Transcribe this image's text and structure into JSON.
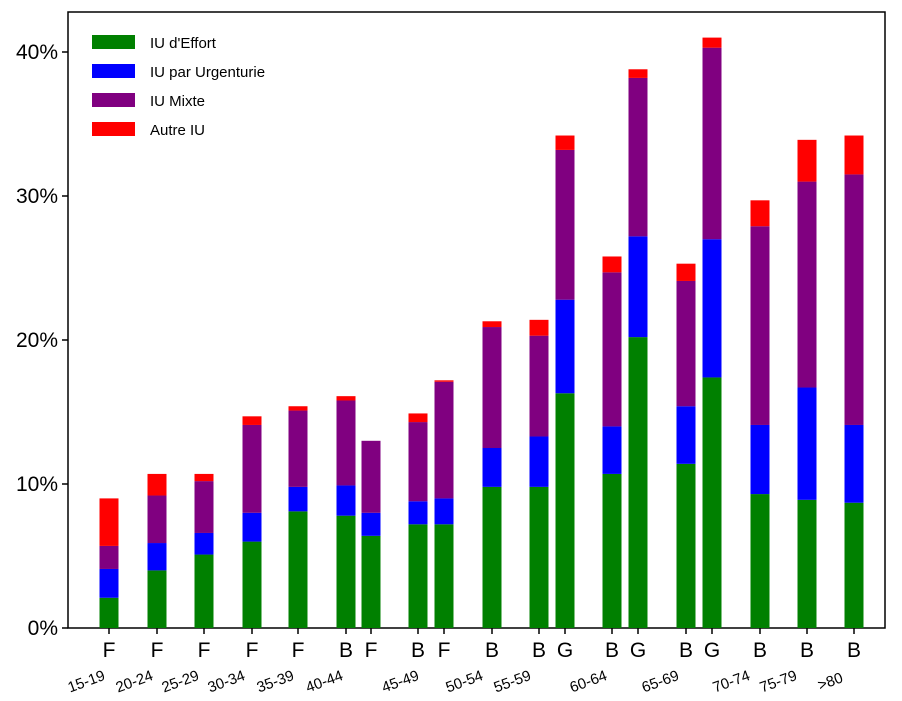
{
  "chart_data": {
    "type": "bar",
    "stacked": true,
    "title": "",
    "xlabel": "",
    "ylabel": "",
    "ylim": [
      0,
      43
    ],
    "yticks": [
      0,
      10,
      20,
      30,
      40
    ],
    "ytick_labels": [
      "0%",
      "10%",
      "20%",
      "30%",
      "40%"
    ],
    "legend_position": "top-left",
    "grid": false,
    "age_groups": [
      "15-19",
      "20-24",
      "25-29",
      "30-34",
      "35-39",
      "40-44",
      "45-49",
      "50-54",
      "55-59",
      "60-64",
      "65-69",
      "70-74",
      "75-79",
      ">80"
    ],
    "categories": [
      "F",
      "F",
      "F",
      "F",
      "F",
      "B",
      "F",
      "B",
      "F",
      "B",
      "B",
      "G",
      "B",
      "G",
      "B",
      "G",
      "B",
      "B",
      "B"
    ],
    "bar_age_groups": [
      "15-19",
      "20-24",
      "25-29",
      "30-34",
      "35-39",
      "40-44",
      "40-44",
      "45-49",
      "45-49",
      "50-54",
      "55-59",
      "55-59",
      "60-64",
      "60-64",
      "65-69",
      "65-69",
      "70-74",
      "75-79",
      ">80"
    ],
    "series": [
      {
        "name": "IU d'Effort",
        "color": "#008000",
        "values": [
          2.1,
          4.0,
          5.1,
          6.0,
          8.1,
          7.8,
          6.4,
          7.2,
          7.2,
          9.8,
          9.8,
          16.3,
          10.7,
          20.2,
          11.4,
          17.4,
          9.3,
          8.9,
          8.7
        ]
      },
      {
        "name": "IU par Urgenturie",
        "color": "#0000ff",
        "values": [
          2.0,
          1.9,
          1.5,
          2.0,
          1.7,
          2.1,
          1.6,
          1.6,
          1.8,
          2.7,
          3.5,
          6.5,
          3.3,
          7.0,
          4.0,
          9.6,
          4.8,
          7.8,
          5.4
        ]
      },
      {
        "name": "IU Mixte",
        "color": "#800080",
        "values": [
          1.6,
          3.3,
          3.6,
          6.1,
          5.3,
          5.9,
          5.0,
          5.5,
          8.1,
          8.4,
          7.0,
          10.4,
          10.7,
          11.0,
          8.7,
          13.3,
          13.8,
          14.3,
          17.4
        ]
      },
      {
        "name": "Autre IU",
        "color": "#ff0000",
        "values": [
          3.3,
          1.5,
          0.5,
          0.6,
          0.3,
          0.3,
          0.0,
          0.6,
          0.1,
          0.4,
          1.1,
          1.0,
          1.1,
          0.6,
          1.2,
          0.7,
          1.8,
          2.9,
          2.7
        ]
      }
    ]
  }
}
